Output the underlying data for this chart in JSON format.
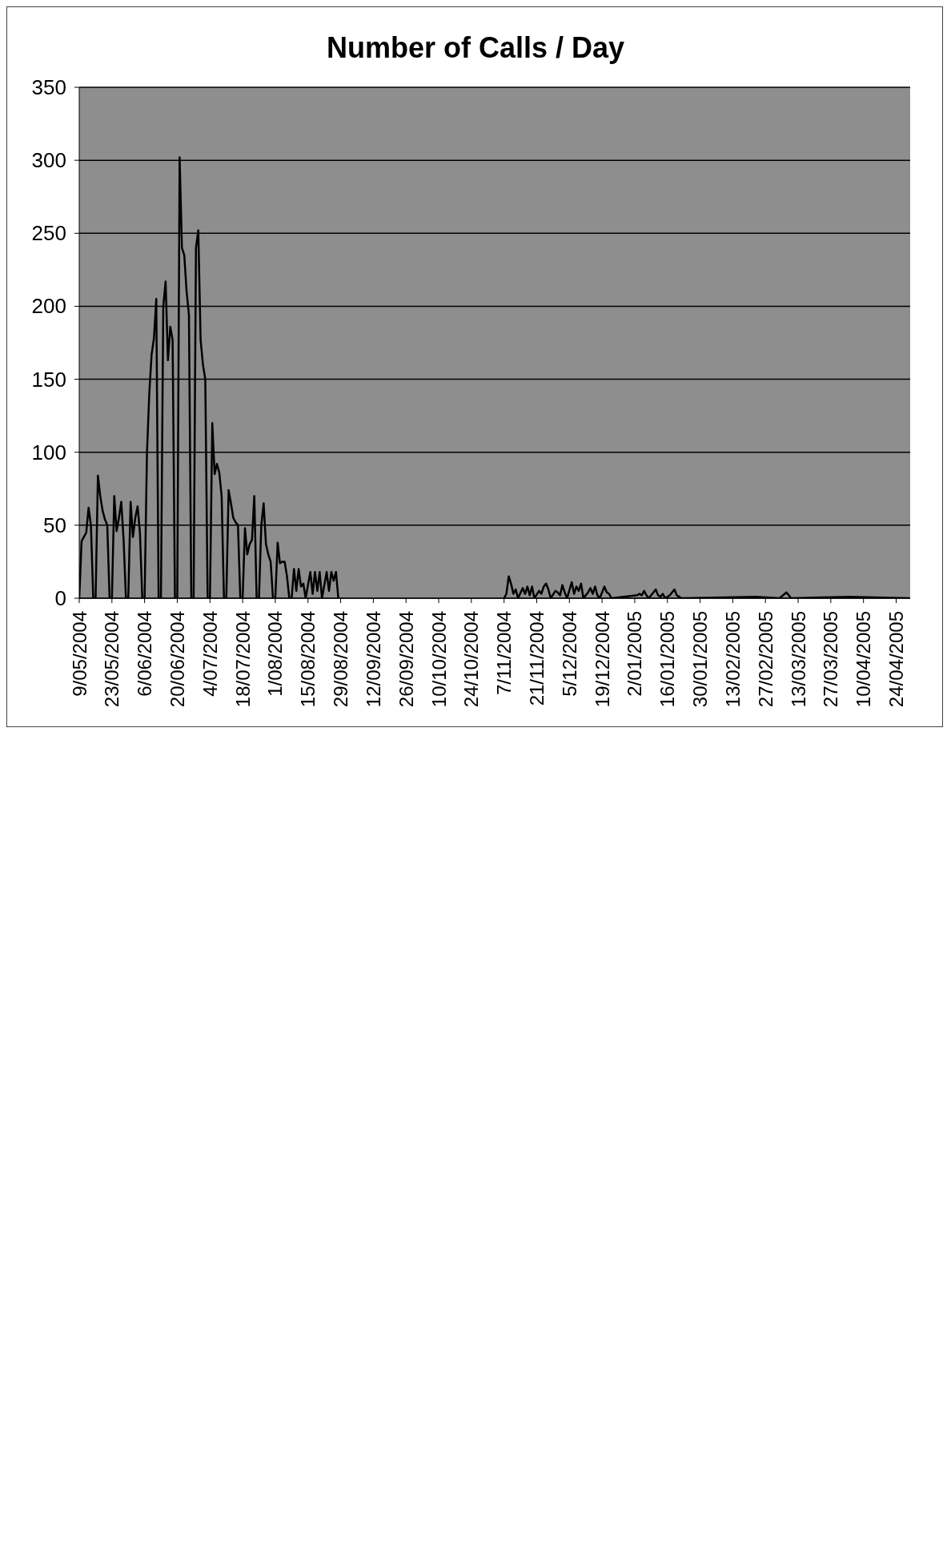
{
  "chart_data": {
    "type": "line",
    "title": "Number of Calls / Day",
    "x": [
      "2004-05-09",
      "2004-05-10",
      "2004-05-11",
      "2004-05-12",
      "2004-05-13",
      "2004-05-14",
      "2004-05-15",
      "2004-05-16",
      "2004-05-17",
      "2004-05-18",
      "2004-05-19",
      "2004-05-20",
      "2004-05-21",
      "2004-05-22",
      "2004-05-23",
      "2004-05-24",
      "2004-05-25",
      "2004-05-26",
      "2004-05-27",
      "2004-05-28",
      "2004-05-29",
      "2004-05-30",
      "2004-05-31",
      "2004-06-01",
      "2004-06-02",
      "2004-06-03",
      "2004-06-04",
      "2004-06-05",
      "2004-06-06",
      "2004-06-07",
      "2004-06-08",
      "2004-06-09",
      "2004-06-10",
      "2004-06-11",
      "2004-06-12",
      "2004-06-13",
      "2004-06-14",
      "2004-06-15",
      "2004-06-16",
      "2004-06-17",
      "2004-06-18",
      "2004-06-19",
      "2004-06-20",
      "2004-06-21",
      "2004-06-22",
      "2004-06-23",
      "2004-06-24",
      "2004-06-25",
      "2004-06-26",
      "2004-06-27",
      "2004-06-28",
      "2004-06-29",
      "2004-06-30",
      "2004-07-01",
      "2004-07-02",
      "2004-07-03",
      "2004-07-04",
      "2004-07-05",
      "2004-07-06",
      "2004-07-07",
      "2004-07-08",
      "2004-07-09",
      "2004-07-10",
      "2004-07-11",
      "2004-07-12",
      "2004-07-13",
      "2004-07-14",
      "2004-07-15",
      "2004-07-16",
      "2004-07-17",
      "2004-07-18",
      "2004-07-19",
      "2004-07-20",
      "2004-07-21",
      "2004-07-22",
      "2004-07-23",
      "2004-07-24",
      "2004-07-25",
      "2004-07-26",
      "2004-07-27",
      "2004-07-28",
      "2004-07-29",
      "2004-07-30",
      "2004-07-31",
      "2004-08-01",
      "2004-08-02",
      "2004-08-03",
      "2004-08-04",
      "2004-08-05",
      "2004-08-06",
      "2004-08-07",
      "2004-08-08",
      "2004-08-09",
      "2004-08-10",
      "2004-08-11",
      "2004-08-12",
      "2004-08-13",
      "2004-08-14",
      "2004-08-16",
      "2004-08-17",
      "2004-08-18",
      "2004-08-19",
      "2004-08-20",
      "2004-08-21",
      "2004-08-23",
      "2004-08-24",
      "2004-08-25",
      "2004-08-26",
      "2004-08-27",
      "2004-08-28",
      "2004-10-06",
      "2004-11-07",
      "2004-11-08",
      "2004-11-09",
      "2004-11-10",
      "2004-11-11",
      "2004-11-12",
      "2004-11-13",
      "2004-11-15",
      "2004-11-16",
      "2004-11-17",
      "2004-11-18",
      "2004-11-19",
      "2004-11-20",
      "2004-11-22",
      "2004-11-23",
      "2004-11-24",
      "2004-11-25",
      "2004-11-26",
      "2004-11-27",
      "2004-11-29",
      "2004-11-30",
      "2004-12-01",
      "2004-12-02",
      "2004-12-03",
      "2004-12-04",
      "2004-12-06",
      "2004-12-07",
      "2004-12-08",
      "2004-12-09",
      "2004-12-10",
      "2004-12-11",
      "2004-12-13",
      "2004-12-14",
      "2004-12-15",
      "2004-12-16",
      "2004-12-17",
      "2004-12-18",
      "2004-12-20",
      "2004-12-21",
      "2004-12-22",
      "2004-12-23",
      "2005-01-03",
      "2005-01-04",
      "2005-01-05",
      "2005-01-06",
      "2005-01-07",
      "2005-01-08",
      "2005-01-10",
      "2005-01-11",
      "2005-01-12",
      "2005-01-13",
      "2005-01-14",
      "2005-01-15",
      "2005-01-17",
      "2005-01-18",
      "2005-01-19",
      "2005-01-20",
      "2005-01-21",
      "2005-01-22",
      "2005-02-23",
      "2005-03-05",
      "2005-03-08",
      "2005-03-10",
      "2005-04-04",
      "2005-04-30"
    ],
    "series": [
      {
        "color": "#000000",
        "values": [
          0,
          39,
          42,
          45,
          62,
          50,
          0,
          0,
          84,
          70,
          60,
          54,
          50,
          0,
          0,
          70,
          46,
          55,
          66,
          40,
          0,
          0,
          66,
          42,
          55,
          63,
          45,
          0,
          0,
          99,
          140,
          167,
          178,
          205,
          0,
          0,
          200,
          217,
          163,
          186,
          177,
          0,
          0,
          302,
          240,
          235,
          210,
          194,
          0,
          0,
          240,
          252,
          177,
          160,
          150,
          0,
          0,
          120,
          85,
          92,
          86,
          70,
          0,
          0,
          74,
          65,
          55,
          52,
          50,
          0,
          0,
          48,
          30,
          37,
          40,
          70,
          0,
          0,
          50,
          65,
          37,
          30,
          25,
          0,
          0,
          38,
          24,
          25,
          25,
          15,
          0,
          0,
          20,
          5,
          20,
          8,
          10,
          0,
          18,
          3,
          18,
          5,
          18,
          0,
          18,
          5,
          18,
          12,
          18,
          0,
          null,
          0,
          3,
          15,
          10,
          3,
          6,
          0,
          7,
          3,
          8,
          2,
          8,
          0,
          5,
          3,
          8,
          10,
          6,
          0,
          5,
          4,
          2,
          9,
          4,
          0,
          11,
          3,
          8,
          5,
          10,
          0,
          4,
          7,
          3,
          8,
          2,
          0,
          8,
          4,
          3,
          0,
          2,
          3,
          2,
          5,
          2,
          0,
          4,
          6,
          2,
          1,
          3,
          0,
          2,
          4,
          6,
          2,
          1,
          0,
          1,
          0,
          4,
          0,
          1,
          0
        ]
      }
    ],
    "xlim": [
      "2004-05-09",
      "2005-04-30"
    ],
    "xticks": [
      {
        "value": "2004-05-09",
        "label": "9/05/2004"
      },
      {
        "value": "2004-05-23",
        "label": "23/05/2004"
      },
      {
        "value": "2004-06-06",
        "label": "6/06/2004"
      },
      {
        "value": "2004-06-20",
        "label": "20/06/2004"
      },
      {
        "value": "2004-07-04",
        "label": "4/07/2004"
      },
      {
        "value": "2004-07-18",
        "label": "18/07/2004"
      },
      {
        "value": "2004-08-01",
        "label": "1/08/2004"
      },
      {
        "value": "2004-08-15",
        "label": "15/08/2004"
      },
      {
        "value": "2004-08-29",
        "label": "29/08/2004"
      },
      {
        "value": "2004-09-12",
        "label": "12/09/2004"
      },
      {
        "value": "2004-09-26",
        "label": "26/09/2004"
      },
      {
        "value": "2004-10-10",
        "label": "10/10/2004"
      },
      {
        "value": "2004-10-24",
        "label": "24/10/2004"
      },
      {
        "value": "2004-11-07",
        "label": "7/11/2004"
      },
      {
        "value": "2004-11-21",
        "label": "21/11/2004"
      },
      {
        "value": "2004-12-05",
        "label": "5/12/2004"
      },
      {
        "value": "2004-12-19",
        "label": "19/12/2004"
      },
      {
        "value": "2005-01-02",
        "label": "2/01/2005"
      },
      {
        "value": "2005-01-16",
        "label": "16/01/2005"
      },
      {
        "value": "2005-01-30",
        "label": "30/01/2005"
      },
      {
        "value": "2005-02-13",
        "label": "13/02/2005"
      },
      {
        "value": "2005-02-27",
        "label": "27/02/2005"
      },
      {
        "value": "2005-03-13",
        "label": "13/03/2005"
      },
      {
        "value": "2005-03-27",
        "label": "27/03/2005"
      },
      {
        "value": "2005-04-10",
        "label": "10/04/2005"
      },
      {
        "value": "2005-04-24",
        "label": "24/04/2005"
      }
    ],
    "ylim": [
      0,
      350
    ],
    "yticks": [
      0,
      50,
      100,
      150,
      200,
      250,
      300,
      350
    ],
    "grid": "y"
  }
}
